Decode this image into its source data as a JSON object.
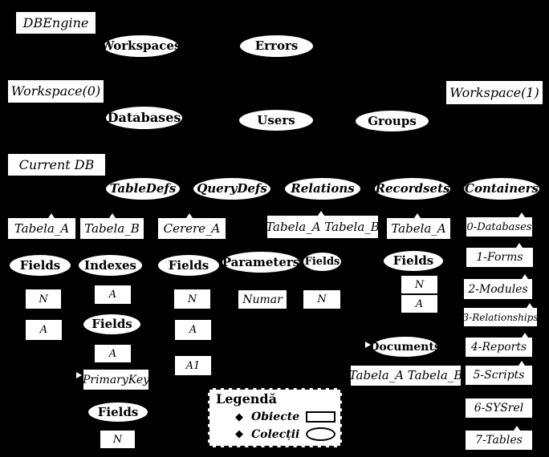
{
  "colors": {
    "background": "#000000",
    "node_fill": "#ffffff",
    "node_text": "#000000"
  },
  "nodes": [
    {
      "id": "dbengine",
      "shape": "rect",
      "label": "DBEngine"
    },
    {
      "id": "workspaces",
      "shape": "ellipse",
      "label": "Workspaces"
    },
    {
      "id": "errors",
      "shape": "ellipse",
      "label": "Errors"
    },
    {
      "id": "workspace0",
      "shape": "rect",
      "label": "Workspace(0)"
    },
    {
      "id": "workspace1",
      "shape": "rect",
      "label": "Workspace(1)"
    },
    {
      "id": "databases",
      "shape": "ellipse",
      "label": "Databases"
    },
    {
      "id": "users",
      "shape": "ellipse",
      "label": "Users"
    },
    {
      "id": "groups",
      "shape": "ellipse",
      "label": "Groups"
    },
    {
      "id": "currentdb",
      "shape": "rect",
      "label": "Current DB"
    },
    {
      "id": "tabledefs",
      "shape": "ellipse",
      "label": "TableDefs"
    },
    {
      "id": "querydefs",
      "shape": "ellipse",
      "label": "QueryDefs"
    },
    {
      "id": "relations",
      "shape": "ellipse",
      "label": "Relations"
    },
    {
      "id": "recordsets",
      "shape": "ellipse",
      "label": "Recordsets"
    },
    {
      "id": "containers",
      "shape": "ellipse",
      "label": "Containers"
    },
    {
      "id": "tabela_a_t",
      "shape": "rect",
      "label": "Tabela_A"
    },
    {
      "id": "tabela_b_t",
      "shape": "rect",
      "label": "Tabela_B"
    },
    {
      "id": "cerere_a",
      "shape": "rect",
      "label": "Cerere_A"
    },
    {
      "id": "tabela_ab_rel",
      "shape": "rect",
      "label": "Tabela_A Tabela_B"
    },
    {
      "id": "tabela_a_rs",
      "shape": "rect",
      "label": "Tabela_A"
    },
    {
      "id": "c0",
      "shape": "rect",
      "label": "0-Databases"
    },
    {
      "id": "fields_ta",
      "shape": "ellipse",
      "label": "Fields"
    },
    {
      "id": "indexes",
      "shape": "ellipse",
      "label": "Indexes"
    },
    {
      "id": "fields_ca",
      "shape": "ellipse",
      "label": "Fields"
    },
    {
      "id": "parameters",
      "shape": "ellipse",
      "label": "Parameters"
    },
    {
      "id": "fields_rel",
      "shape": "ellipse",
      "label": "Fields"
    },
    {
      "id": "fields_rs",
      "shape": "ellipse",
      "label": "Fields"
    },
    {
      "id": "c1",
      "shape": "rect",
      "label": "1-Forms"
    },
    {
      "id": "n_ta",
      "shape": "rect",
      "label": "N"
    },
    {
      "id": "a_ta",
      "shape": "rect",
      "label": "A"
    },
    {
      "id": "a_idx",
      "shape": "rect",
      "label": "A"
    },
    {
      "id": "fields_idx",
      "shape": "ellipse",
      "label": "Fields"
    },
    {
      "id": "a_idx2",
      "shape": "rect",
      "label": "A"
    },
    {
      "id": "pk",
      "shape": "rect",
      "label": "PrimaryKey"
    },
    {
      "id": "fields_pk",
      "shape": "ellipse",
      "label": "Fields"
    },
    {
      "id": "n_pk",
      "shape": "rect",
      "label": "N"
    },
    {
      "id": "n_ca",
      "shape": "rect",
      "label": "N"
    },
    {
      "id": "a_ca",
      "shape": "rect",
      "label": "A"
    },
    {
      "id": "a1_ca",
      "shape": "rect",
      "label": "A1"
    },
    {
      "id": "numar",
      "shape": "rect",
      "label": "Numar"
    },
    {
      "id": "n_rel",
      "shape": "rect",
      "label": "N"
    },
    {
      "id": "n_rs",
      "shape": "rect",
      "label": "N"
    },
    {
      "id": "a_rs",
      "shape": "rect",
      "label": "A"
    },
    {
      "id": "documents",
      "shape": "ellipse",
      "label": "Documents"
    },
    {
      "id": "tabela_ab_rs",
      "shape": "rect",
      "label": "Tabela_A Tabela_B"
    },
    {
      "id": "c2",
      "shape": "rect",
      "label": "2-Modules"
    },
    {
      "id": "c3",
      "shape": "rect",
      "label": "3-Relationships"
    },
    {
      "id": "c4",
      "shape": "rect",
      "label": "4-Reports"
    },
    {
      "id": "c5",
      "shape": "rect",
      "label": "5-Scripts"
    },
    {
      "id": "c6",
      "shape": "rect",
      "label": "6-SYSrel"
    },
    {
      "id": "c7",
      "shape": "rect",
      "label": "7-Tables"
    }
  ],
  "legend": {
    "title": "Legendă",
    "items": [
      {
        "bullet": "◆",
        "label": "Obiecte",
        "shape": "rect"
      },
      {
        "bullet": "◆",
        "label": "Colecții",
        "shape": "ellipse"
      }
    ]
  }
}
